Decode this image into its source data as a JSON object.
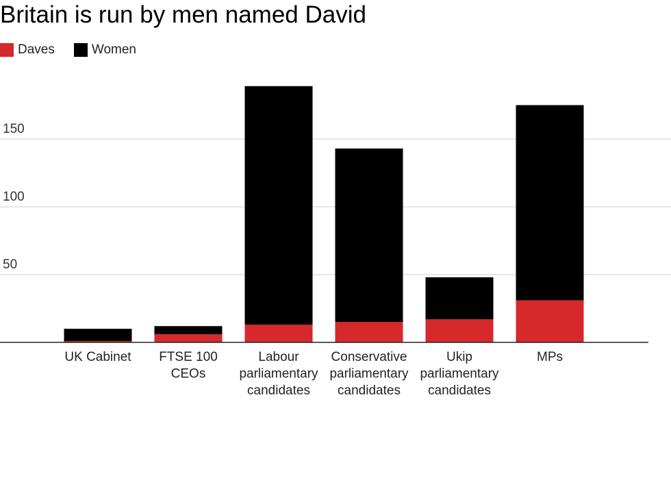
{
  "chart_data": {
    "type": "bar",
    "stacked": true,
    "title": "Britain is run by men named David",
    "xlabel": "",
    "ylabel": "",
    "categories": [
      "UK Cabinet",
      "FTSE 100 CEOs",
      "Labour parliamentary candidates",
      "Conservative parliamentary candidates",
      "Ukip parliamentary candidates",
      "MPs"
    ],
    "category_lines": [
      [
        "UK Cabinet"
      ],
      [
        "FTSE 100",
        "CEOs"
      ],
      [
        "Labour",
        "parliamentary",
        "candidates"
      ],
      [
        "Conservative",
        "parliamentary",
        "candidates"
      ],
      [
        "Ukip",
        "parliamentary",
        "candidates"
      ],
      [
        "MPs"
      ]
    ],
    "series": [
      {
        "name": "Daves",
        "color": "#d7282b",
        "values": [
          1,
          6,
          13,
          15,
          17,
          31
        ]
      },
      {
        "name": "Women",
        "color": "#000000",
        "values": [
          9,
          6,
          176,
          128,
          31,
          144
        ]
      }
    ],
    "ylim": [
      0,
      200
    ],
    "yticks": [
      50,
      100,
      150
    ],
    "grid": true,
    "legend_position": "top-left"
  }
}
